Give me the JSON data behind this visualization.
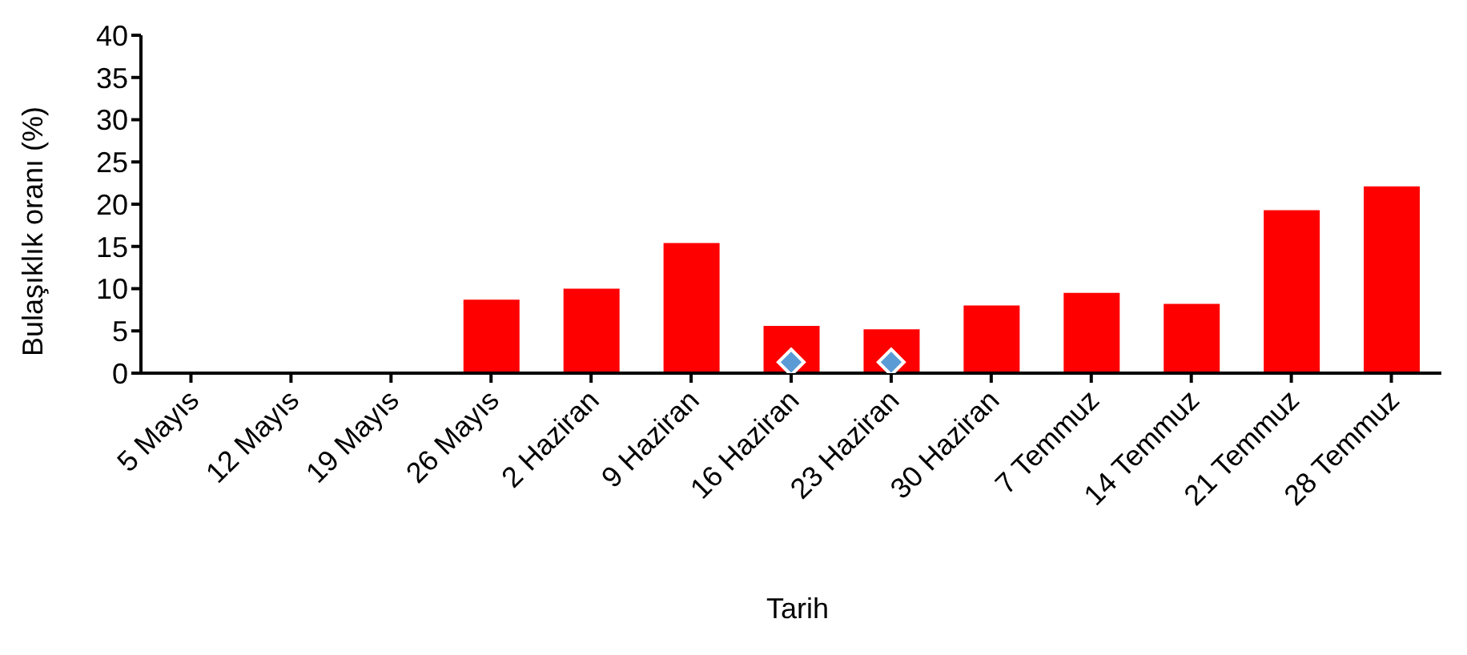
{
  "chart_data": {
    "type": "bar",
    "xlabel": "Tarih",
    "ylabel": "Bulaşıklık oranı (%)",
    "categories": [
      "5 Mayıs",
      "12 Mayıs",
      "19 Mayıs",
      "26 Mayıs",
      "2 Haziran",
      "9 Haziran",
      "16 Haziran",
      "23 Haziran",
      "30 Haziran",
      "7 Temmuz",
      "14 Temmuz",
      "21 Temmuz",
      "28 Temmuz"
    ],
    "series": [
      {
        "color": "#ff0000",
        "values": [
          0,
          0,
          0,
          8.7,
          10,
          15.4,
          5.6,
          5.2,
          8,
          9.5,
          8.2,
          19.3,
          22.1
        ]
      },
      {
        "type": "scatter",
        "color": "#5b9bd5",
        "marker": "diamond",
        "values": [
          null,
          null,
          null,
          null,
          null,
          null,
          1.3,
          1.3,
          null,
          null,
          null,
          null,
          null
        ]
      }
    ],
    "ylim": [
      0,
      40
    ],
    "yticks": [
      0,
      5,
      10,
      15,
      20,
      25,
      30,
      35,
      40
    ],
    "grid": false,
    "legend": false
  }
}
